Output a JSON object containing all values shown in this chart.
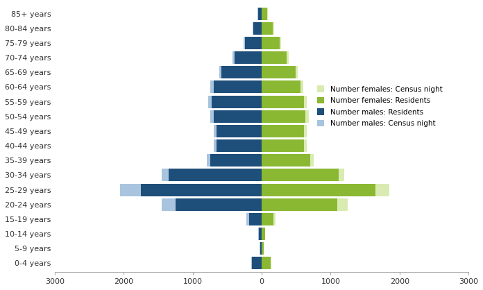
{
  "age_groups": [
    "0-4 years",
    "5-9 years",
    "10-14 years",
    "15-19 years",
    "20-24 years",
    "25-29 years",
    "30-34 years",
    "35-39 years",
    "40-44 years",
    "45-49 years",
    "50-54 years",
    "55-59 years",
    "60-64 years",
    "65-69 years",
    "70-74 years",
    "75-79 years",
    "80-84 years",
    "85+ years"
  ],
  "males_census": [
    150,
    30,
    50,
    220,
    1450,
    2050,
    1450,
    800,
    700,
    700,
    750,
    780,
    750,
    620,
    420,
    260,
    130,
    60
  ],
  "males_residents": [
    140,
    25,
    45,
    180,
    1250,
    1750,
    1350,
    750,
    660,
    660,
    700,
    730,
    700,
    580,
    390,
    240,
    120,
    55
  ],
  "females_census": [
    140,
    30,
    50,
    200,
    1250,
    1850,
    1200,
    750,
    650,
    650,
    680,
    650,
    600,
    520,
    390,
    280,
    180,
    90
  ],
  "females_residents": [
    130,
    25,
    45,
    170,
    1100,
    1650,
    1120,
    700,
    610,
    610,
    630,
    610,
    560,
    490,
    360,
    260,
    165,
    80
  ],
  "color_males_census": "#a8c4de",
  "color_males_residents": "#1e4e7a",
  "color_females_census": "#d9ebb0",
  "color_females_residents": "#8ab832",
  "xlim": 3000,
  "xtick_positions": [
    -3000,
    -2000,
    -1000,
    0,
    1000,
    2000,
    3000
  ],
  "xtick_labels": [
    "3000",
    "2000",
    "1000",
    "0",
    "1000",
    "2000",
    "3000"
  ],
  "legend_labels": [
    "Number females: Census night",
    "Number females: Residents",
    "Number males: Residents",
    "Number males: Census night"
  ],
  "legend_colors": [
    "#d9ebb0",
    "#8ab832",
    "#1e4e7a",
    "#a8c4de"
  ],
  "bar_height": 0.85
}
